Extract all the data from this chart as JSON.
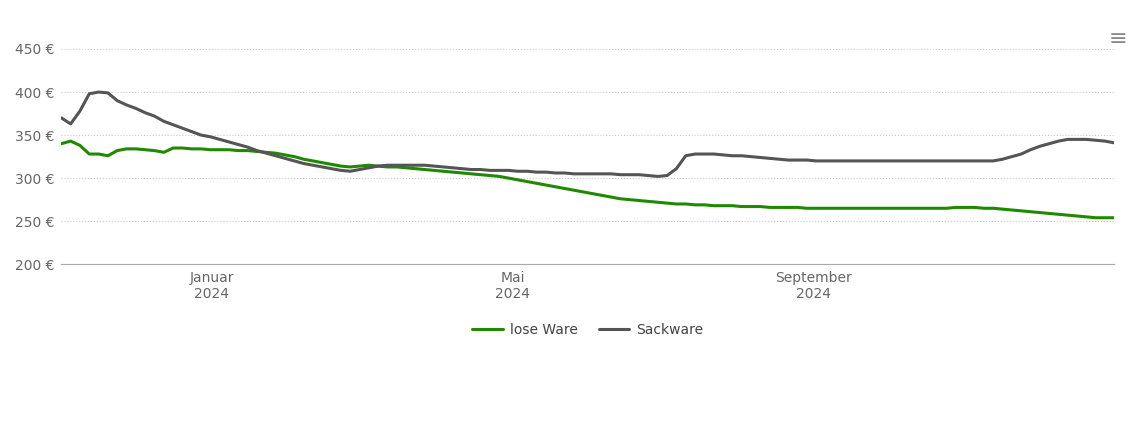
{
  "background_color": "#ffffff",
  "grid_color": "#cccccc",
  "grid_style": "dotted",
  "ylim": [
    200,
    460
  ],
  "yticks": [
    200,
    250,
    300,
    350,
    400,
    450
  ],
  "ytick_labels": [
    "200 €",
    "250 €",
    "300 €",
    "350 €",
    "400 €",
    "450 €"
  ],
  "lose_ware_color": "#1f8a00",
  "sackware_color": "#555555",
  "line_width": 2.2,
  "legend_labels": [
    "lose Ware",
    "Sackware"
  ],
  "xtick_labels": [
    "Januar\n2024",
    "Mai\n2024",
    "September\n2024"
  ],
  "lose_ware": [
    340,
    343,
    338,
    328,
    328,
    326,
    332,
    334,
    334,
    333,
    332,
    330,
    335,
    335,
    334,
    334,
    333,
    333,
    333,
    332,
    332,
    331,
    330,
    329,
    327,
    325,
    322,
    320,
    318,
    316,
    314,
    313,
    314,
    315,
    314,
    313,
    313,
    312,
    311,
    310,
    309,
    308,
    307,
    306,
    305,
    304,
    303,
    302,
    300,
    298,
    296,
    294,
    292,
    290,
    288,
    286,
    284,
    282,
    280,
    278,
    276,
    275,
    274,
    273,
    272,
    271,
    270,
    270,
    269,
    269,
    268,
    268,
    268,
    267,
    267,
    267,
    266,
    266,
    266,
    266,
    265,
    265,
    265,
    265,
    265,
    265,
    265,
    265,
    265,
    265,
    265,
    265,
    265,
    265,
    265,
    265,
    266,
    266,
    266,
    265,
    265,
    264,
    263,
    262,
    261,
    260,
    259,
    258,
    257,
    256,
    255,
    254,
    254,
    254
  ],
  "sackware": [
    370,
    363,
    378,
    398,
    400,
    399,
    390,
    385,
    381,
    376,
    372,
    366,
    362,
    358,
    354,
    350,
    348,
    345,
    342,
    339,
    336,
    332,
    329,
    326,
    323,
    320,
    317,
    315,
    313,
    311,
    309,
    308,
    310,
    312,
    314,
    315,
    315,
    315,
    315,
    315,
    314,
    313,
    312,
    311,
    310,
    310,
    309,
    309,
    309,
    308,
    308,
    307,
    307,
    306,
    306,
    305,
    305,
    305,
    305,
    305,
    304,
    304,
    304,
    303,
    302,
    303,
    311,
    326,
    328,
    328,
    328,
    327,
    326,
    326,
    325,
    324,
    323,
    322,
    321,
    321,
    321,
    320,
    320,
    320,
    320,
    320,
    320,
    320,
    320,
    320,
    320,
    320,
    320,
    320,
    320,
    320,
    320,
    320,
    320,
    320,
    320,
    322,
    325,
    328,
    333,
    337,
    340,
    343,
    345,
    345,
    345,
    344,
    343,
    341
  ]
}
